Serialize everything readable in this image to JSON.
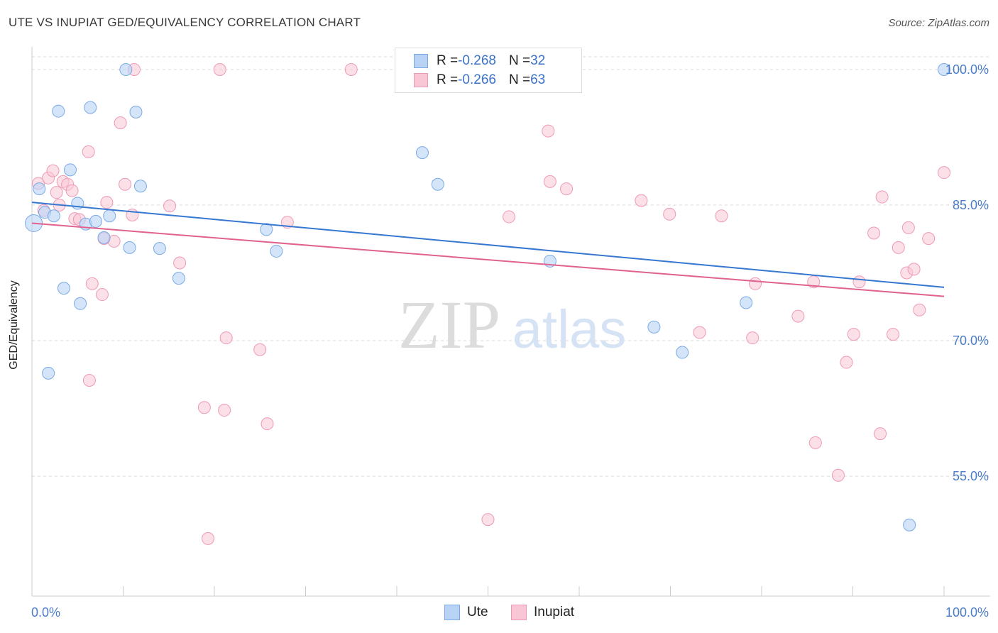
{
  "title": "UTE VS INUPIAT GED/EQUIVALENCY CORRELATION CHART",
  "source": "Source: ZipAtlas.com",
  "watermark": {
    "zip": "ZIP",
    "atlas": "atlas"
  },
  "legend": {
    "rows": [
      {
        "r_label": "R = ",
        "r_value": "-0.268",
        "n_label": "N = ",
        "n_value": "32"
      },
      {
        "r_label": "R = ",
        "r_value": "-0.266",
        "n_label": "N = ",
        "n_value": "63"
      }
    ]
  },
  "colors": {
    "ute_fill": "#b8d3f5",
    "ute_stroke": "#7aaae6",
    "ute_line": "#3677d1",
    "inupiat_fill": "#f9c6d6",
    "inupiat_stroke": "#ee9ab6",
    "inupiat_line": "#e0628f",
    "grid": "#d9d9d9",
    "axis_label": "#4a7dc9"
  },
  "chart_data": {
    "type": "scatter",
    "title": "UTE VS INUPIAT GED/EQUIVALENCY CORRELATION CHART",
    "xlabel": "",
    "ylabel": "GED/Equivalency",
    "xlim": [
      0,
      100
    ],
    "ylim": [
      40,
      102
    ],
    "x_tick_labels": [
      "0.0%",
      "100.0%"
    ],
    "y_ticks": [
      55,
      70,
      85,
      100
    ],
    "y_tick_labels": [
      "55.0%",
      "70.0%",
      "85.0%",
      "100.0%"
    ],
    "grid": true,
    "legend_position": "top-center",
    "series": [
      {
        "name": "Ute",
        "r": -0.268,
        "n": 32,
        "trend": {
          "x": [
            0,
            100
          ],
          "y": [
            85.3,
            75.9
          ]
        },
        "points": [
          [
            0.2,
            83.0
          ],
          [
            0.8,
            86.8
          ],
          [
            1.4,
            84.2
          ],
          [
            1.8,
            66.4
          ],
          [
            2.4,
            83.8
          ],
          [
            2.9,
            95.4
          ],
          [
            3.5,
            75.8
          ],
          [
            4.2,
            88.9
          ],
          [
            5.0,
            85.2
          ],
          [
            5.3,
            74.1
          ],
          [
            5.9,
            82.9
          ],
          [
            6.4,
            95.8
          ],
          [
            7.0,
            83.2
          ],
          [
            7.9,
            81.4
          ],
          [
            8.5,
            83.8
          ],
          [
            10.3,
            100.0
          ],
          [
            10.7,
            80.3
          ],
          [
            11.4,
            95.3
          ],
          [
            11.9,
            87.1
          ],
          [
            14.0,
            80.2
          ],
          [
            16.1,
            76.9
          ],
          [
            25.7,
            82.3
          ],
          [
            26.8,
            79.9
          ],
          [
            42.8,
            90.8
          ],
          [
            44.5,
            87.3
          ],
          [
            52.3,
            100.0
          ],
          [
            56.8,
            78.8
          ],
          [
            68.2,
            71.5
          ],
          [
            71.3,
            68.7
          ],
          [
            78.3,
            74.2
          ],
          [
            96.2,
            49.6
          ],
          [
            100.0,
            100.0
          ]
        ]
      },
      {
        "name": "Inupiat",
        "r": -0.266,
        "n": 63,
        "trend": {
          "x": [
            0,
            100
          ],
          "y": [
            83.0,
            74.9
          ]
        },
        "points": [
          [
            0.7,
            87.4
          ],
          [
            1.3,
            84.4
          ],
          [
            1.8,
            88.0
          ],
          [
            2.3,
            88.8
          ],
          [
            2.7,
            86.4
          ],
          [
            3.4,
            87.6
          ],
          [
            3.9,
            87.3
          ],
          [
            4.4,
            86.6
          ],
          [
            4.7,
            83.5
          ],
          [
            5.2,
            83.4
          ],
          [
            6.2,
            90.9
          ],
          [
            6.3,
            65.6
          ],
          [
            6.6,
            76.3
          ],
          [
            7.7,
            75.1
          ],
          [
            7.9,
            81.3
          ],
          [
            8.2,
            85.3
          ],
          [
            9.0,
            81.0
          ],
          [
            9.7,
            94.1
          ],
          [
            10.2,
            87.3
          ],
          [
            11.0,
            83.9
          ],
          [
            11.2,
            100.0
          ],
          [
            15.1,
            84.9
          ],
          [
            16.2,
            78.6
          ],
          [
            18.9,
            62.6
          ],
          [
            19.3,
            48.1
          ],
          [
            20.6,
            100.0
          ],
          [
            21.1,
            62.3
          ],
          [
            21.3,
            70.3
          ],
          [
            25.0,
            69.0
          ],
          [
            25.8,
            60.8
          ],
          [
            28.0,
            83.1
          ],
          [
            35.0,
            100.0
          ],
          [
            47.0,
            100.0
          ],
          [
            50.0,
            50.2
          ],
          [
            52.3,
            83.7
          ],
          [
            56.6,
            93.2
          ],
          [
            56.8,
            87.6
          ],
          [
            58.6,
            86.8
          ],
          [
            66.8,
            85.5
          ],
          [
            69.9,
            84.0
          ],
          [
            73.2,
            70.9
          ],
          [
            75.6,
            83.8
          ],
          [
            79.0,
            70.3
          ],
          [
            79.3,
            76.3
          ],
          [
            84.0,
            72.7
          ],
          [
            85.7,
            76.5
          ],
          [
            85.9,
            58.7
          ],
          [
            88.4,
            55.1
          ],
          [
            89.3,
            67.6
          ],
          [
            90.1,
            70.7
          ],
          [
            90.7,
            76.5
          ],
          [
            92.3,
            81.9
          ],
          [
            93.0,
            59.7
          ],
          [
            93.2,
            85.9
          ],
          [
            94.4,
            70.7
          ],
          [
            95.0,
            80.3
          ],
          [
            95.9,
            77.5
          ],
          [
            96.1,
            82.5
          ],
          [
            96.7,
            77.9
          ],
          [
            97.3,
            73.4
          ],
          [
            98.3,
            81.3
          ],
          [
            100.0,
            88.6
          ],
          [
            3.0,
            85.0
          ]
        ]
      }
    ]
  },
  "bottom_legend": {
    "ute": "Ute",
    "inupiat": "Inupiat"
  }
}
